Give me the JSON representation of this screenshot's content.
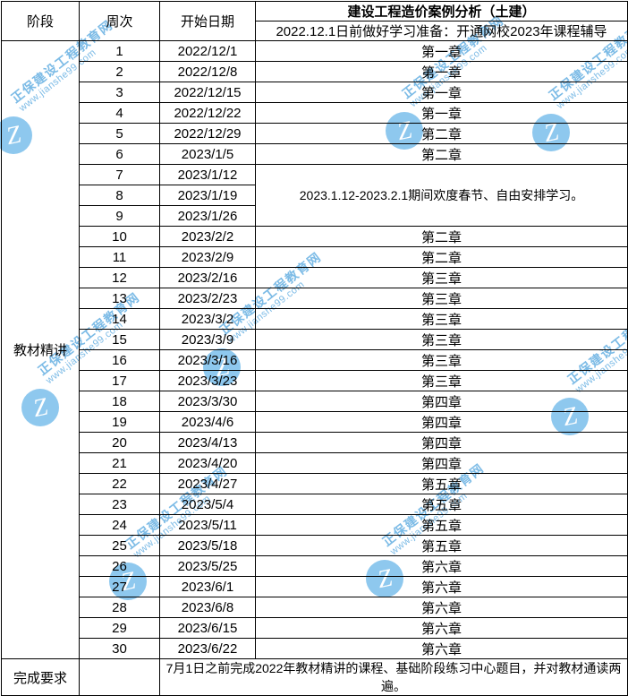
{
  "table": {
    "headers": {
      "stage": "阶段",
      "week": "周次",
      "start_date": "开始日期",
      "course_title": "建设工程造价案例分析（土建）",
      "prep_note": "2022.12.1日前做好学习准备：开通网校2023年课程辅导"
    },
    "stage_label": "教材精讲",
    "holiday_note": "2023.1.12-2023.2.1期间欢度春节、自由安排学习。",
    "completion_label": "完成要求",
    "completion_note": "7月1日之前完成2022年教材精讲的课程、基础阶段练习中心题目，并对教材通读两遍。",
    "rows": [
      {
        "week": "1",
        "date": "2022/12/1",
        "content": "第一章"
      },
      {
        "week": "2",
        "date": "2022/12/8",
        "content": "第一章"
      },
      {
        "week": "3",
        "date": "2022/12/15",
        "content": "第一章"
      },
      {
        "week": "4",
        "date": "2022/12/22",
        "content": "第一章"
      },
      {
        "week": "5",
        "date": "2022/12/29",
        "content": "第二章"
      },
      {
        "week": "6",
        "date": "2023/1/5",
        "content": "第二章"
      },
      {
        "week": "7",
        "date": "2023/1/12"
      },
      {
        "week": "8",
        "date": "2023/1/19"
      },
      {
        "week": "9",
        "date": "2023/1/26"
      },
      {
        "week": "10",
        "date": "2023/2/2",
        "content": "第二章"
      },
      {
        "week": "11",
        "date": "2023/2/9",
        "content": "第二章"
      },
      {
        "week": "12",
        "date": "2023/2/16",
        "content": "第三章"
      },
      {
        "week": "13",
        "date": "2023/2/23",
        "content": "第三章"
      },
      {
        "week": "14",
        "date": "2023/3/2",
        "content": "第三章"
      },
      {
        "week": "15",
        "date": "2023/3/9",
        "content": "第三章"
      },
      {
        "week": "16",
        "date": "2023/3/16",
        "content": "第三章"
      },
      {
        "week": "17",
        "date": "2023/3/23",
        "content": "第三章"
      },
      {
        "week": "18",
        "date": "2023/3/30",
        "content": "第四章"
      },
      {
        "week": "19",
        "date": "2023/4/6",
        "content": "第四章"
      },
      {
        "week": "20",
        "date": "2023/4/13",
        "content": "第四章"
      },
      {
        "week": "21",
        "date": "2023/4/20",
        "content": "第四章"
      },
      {
        "week": "22",
        "date": "2023/4/27",
        "content": "第五章"
      },
      {
        "week": "23",
        "date": "2023/5/4",
        "content": "第五章"
      },
      {
        "week": "24",
        "date": "2023/5/11",
        "content": "第五章"
      },
      {
        "week": "25",
        "date": "2023/5/18",
        "content": "第五章"
      },
      {
        "week": "26",
        "date": "2023/5/25",
        "content": "第六章"
      },
      {
        "week": "27",
        "date": "2023/6/1",
        "content": "第六章"
      },
      {
        "week": "28",
        "date": "2023/6/8",
        "content": "第六章"
      },
      {
        "week": "29",
        "date": "2023/6/15",
        "content": "第六章"
      },
      {
        "week": "30",
        "date": "2023/6/22",
        "content": "第六章"
      }
    ]
  },
  "watermark": {
    "brand_cn": "正保建设工程教育网",
    "brand_url": "www.jianshe99.com",
    "circle_color": "#8ec8ee",
    "text_color": "#7cbbe6",
    "logo_letter": "Z"
  }
}
